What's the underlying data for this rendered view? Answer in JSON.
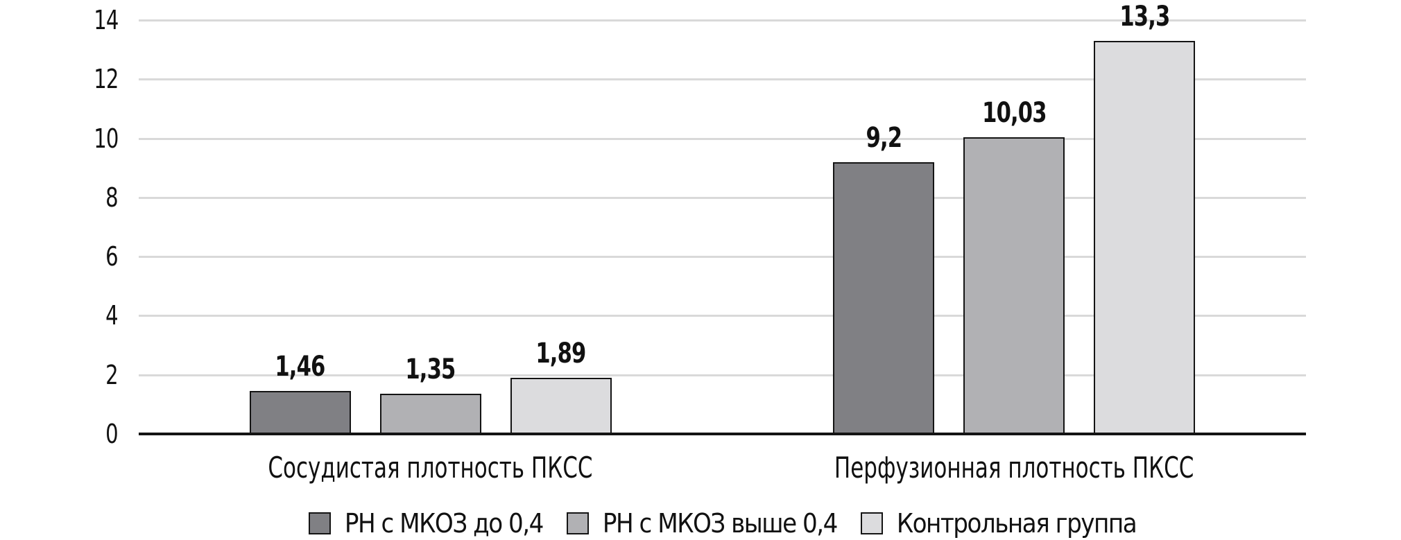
{
  "chart_data": {
    "type": "bar",
    "title": "",
    "xlabel": "",
    "ylabel": "",
    "categories": [
      "Сосудистая плотность ПКСС",
      "Перфузионная плотность ПКСС"
    ],
    "series": [
      {
        "name": "РН с МКОЗ до 0,4",
        "color": "#808084",
        "values": [
          1.46,
          9.2
        ],
        "value_labels": [
          "1,46",
          "9,2"
        ]
      },
      {
        "name": "РН с МКОЗ выше 0,4",
        "color": "#b1b1b4",
        "values": [
          1.35,
          10.03
        ],
        "value_labels": [
          "1,35",
          "10,03"
        ]
      },
      {
        "name": "Контрольная группа",
        "color": "#dcdcde",
        "values": [
          1.89,
          13.3
        ],
        "value_labels": [
          "1,89",
          "13,3"
        ]
      }
    ],
    "y_axis": {
      "min": 0,
      "max": 14,
      "step": 2,
      "tick_labels": [
        "0",
        "2",
        "4",
        "6",
        "8",
        "10",
        "12",
        "14"
      ]
    },
    "grid": "horizontal",
    "legend_position": "bottom",
    "decimal_separator": ","
  },
  "style": {
    "background_color": "#ffffff",
    "grid_color": "#d9d9d9",
    "axis_color": "#141414",
    "bar_border_color": "#141414",
    "text_color": "#111111"
  }
}
